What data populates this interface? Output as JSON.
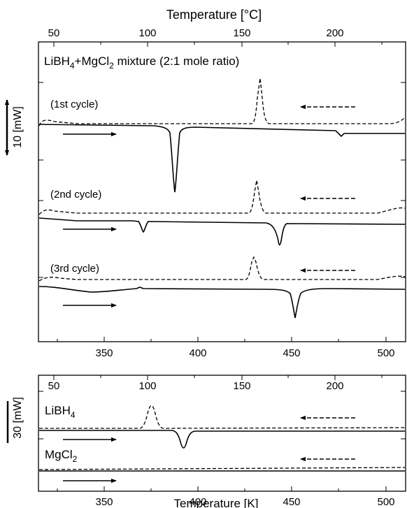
{
  "chart_data": [
    {
      "type": "line",
      "title": "LiBH4+MgCl2 mixture (2:1 mole ratio)",
      "xlabel_top": "Temperature [°C]",
      "xlabel_bottom": "",
      "ylabel": "10 [mW]",
      "xlim_K": [
        313,
        515
      ],
      "xticks_K": [
        "350",
        "400",
        "450",
        "500"
      ],
      "xticks_C": [
        "50",
        "100",
        "150",
        "200"
      ],
      "series": [
        {
          "name": "(1st cycle)",
          "features": [
            {
              "direction": "heating",
              "event": "endothermic peak",
              "x_K": 389
            },
            {
              "direction": "heating",
              "event": "small endothermic dip",
              "x_K": 489
            },
            {
              "direction": "cooling",
              "event": "exothermic peak",
              "x_K": 436
            }
          ]
        },
        {
          "name": "(2nd cycle)",
          "features": [
            {
              "direction": "heating",
              "event": "endothermic peak",
              "x_K": 370
            },
            {
              "direction": "heating",
              "event": "endothermic peak",
              "x_K": 443
            },
            {
              "direction": "cooling",
              "event": "exothermic peak",
              "x_K": 432
            }
          ]
        },
        {
          "name": "(3rd cycle)",
          "features": [
            {
              "direction": "heating",
              "event": "endothermic peak",
              "x_K": 442
            },
            {
              "direction": "cooling",
              "event": "exothermic peak",
              "x_K": 430
            }
          ]
        }
      ],
      "legend": {
        "heating": "solid line, arrow →",
        "cooling": "dashed line, arrow ←"
      }
    },
    {
      "type": "line",
      "title": "",
      "xlabel_top": "",
      "xlabel_bottom": "Temperature [K]",
      "ylabel": "30 [mW]",
      "xlim_K": [
        313,
        515
      ],
      "xticks_K": [
        "350",
        "400",
        "450",
        "500"
      ],
      "xticks_C": [
        "50",
        "100",
        "150",
        "200"
      ],
      "series": [
        {
          "name": "LiBH4",
          "name_main": "LiBH",
          "name_sub": "4",
          "features": [
            {
              "direction": "heating",
              "event": "endothermic peak",
              "x_K": 391
            },
            {
              "direction": "cooling",
              "event": "exothermic peak",
              "x_K": 378
            }
          ]
        },
        {
          "name": "MgCl2",
          "name_main": "MgCl",
          "name_sub": "2",
          "features": []
        }
      ]
    }
  ],
  "top_panel": {
    "xlabel_top": "Temperature [°C]",
    "title_parts": {
      "a": "LiBH",
      "a_sub": "4",
      "b": "+MgCl",
      "b_sub": "2",
      "c": " mixture (2:1 mole ratio)"
    },
    "ylabel": "10 [mW]",
    "cycle_labels": [
      "(1st cycle)",
      "(2nd cycle)",
      "(3rd cycle)"
    ]
  },
  "bottom_panel": {
    "ylabel": "30 [mW]",
    "xlabel_bottom": "Temperature [K]"
  },
  "colors": {
    "line": "#000000",
    "background": "#ffffff"
  }
}
